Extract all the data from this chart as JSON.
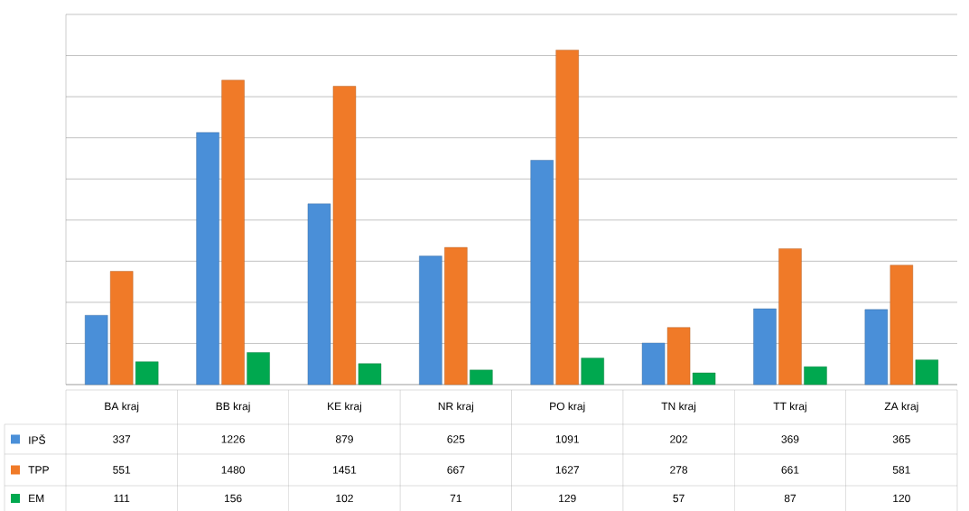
{
  "chart_data": {
    "type": "bar",
    "categories": [
      "BA kraj",
      "BB kraj",
      "KE kraj",
      "NR kraj",
      "PO kraj",
      "TN kraj",
      "TT kraj",
      "ZA kraj"
    ],
    "series": [
      {
        "name": "IPŠ",
        "color": "#4a8fd8",
        "values": [
          337,
          1226,
          879,
          625,
          1091,
          202,
          369,
          365
        ]
      },
      {
        "name": "TPP",
        "color": "#f07a28",
        "values": [
          551,
          1480,
          1451,
          667,
          1627,
          278,
          661,
          581
        ]
      },
      {
        "name": "EM",
        "color": "#00a84f",
        "values": [
          111,
          156,
          102,
          71,
          129,
          57,
          87,
          120
        ]
      }
    ],
    "ylim": [
      0,
      1800
    ],
    "yticks": [
      {
        "value": 0,
        "label": null
      },
      {
        "value": 200,
        "label": null
      },
      {
        "value": 400,
        "label": null
      },
      {
        "value": 600,
        "label": null
      },
      {
        "value": 800,
        "label": null
      },
      {
        "value": 1000,
        "label": null
      },
      {
        "value": 1200,
        "label": null
      },
      {
        "value": 1400,
        "label": null
      },
      {
        "value": 1600,
        "label": null
      },
      {
        "value": 1800,
        "label": null
      }
    ],
    "grid": "y",
    "tick_labels": "x",
    "legend": "left",
    "data_labels": true
  }
}
